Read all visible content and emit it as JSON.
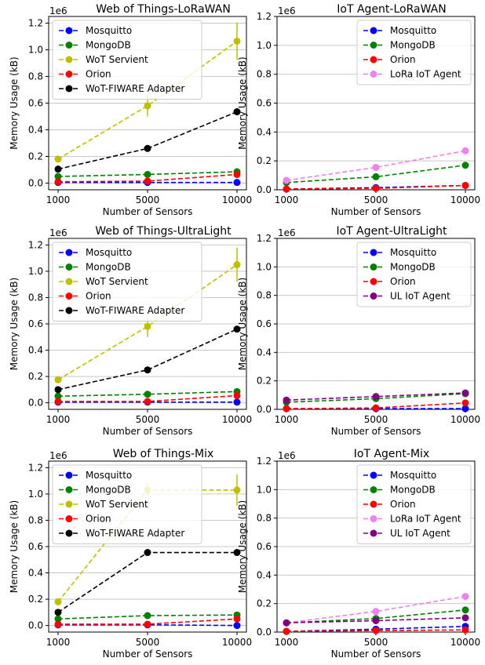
{
  "colors": {
    "Mosquitto": "#0000ff",
    "MongoDB": "#008000",
    "WoT Servient": "#bfbf00",
    "Orion": "#ff0000",
    "WoT-FIWARE Adapter": "#000000",
    "LoRa IoT Agent": "#ee82ee",
    "UL IoT Agent": "#800080"
  },
  "chart_data": [
    {
      "type": "line",
      "title": "Web of Things-LoRaWAN",
      "xlabel": "Number of Sensors",
      "ylabel": "Memory Usage (kB)",
      "scale_label": "1e6",
      "x": [
        "1000",
        "5000",
        "10000"
      ],
      "ylim": [
        -0.05,
        1.25
      ],
      "yticks": [
        "0.0",
        "0.2",
        "0.4",
        "0.6",
        "0.8",
        "1.0",
        "1.2"
      ],
      "ytick_values": [
        0,
        0.2,
        0.4,
        0.6,
        0.8,
        1.0,
        1.2
      ],
      "grid": "y",
      "legend": "top-left",
      "series": [
        {
          "name": "Mosquitto",
          "values": [
            0.005,
            0.005,
            0.005
          ]
        },
        {
          "name": "MongoDB",
          "values": [
            0.05,
            0.065,
            0.085
          ]
        },
        {
          "name": "WoT Servient",
          "values": [
            0.18,
            0.58,
            1.065
          ],
          "err": [
            0.02,
            0.08,
            0.14
          ]
        },
        {
          "name": "Orion",
          "values": [
            0.01,
            0.015,
            0.065
          ]
        },
        {
          "name": "WoT-FIWARE Adapter",
          "values": [
            0.105,
            0.26,
            0.535
          ]
        }
      ]
    },
    {
      "type": "line",
      "title": "IoT Agent-LoRaWAN",
      "xlabel": "Number of Sensors",
      "ylabel": "Memory Usage (kB)",
      "scale_label": "1e6",
      "x": [
        "1000",
        "5000",
        "10000"
      ],
      "ylim": [
        0,
        1.2
      ],
      "yticks": [
        "0.0",
        "0.2",
        "0.4",
        "0.6",
        "0.8",
        "1.0",
        "1.2"
      ],
      "ytick_values": [
        0,
        0.2,
        0.4,
        0.6,
        0.8,
        1.0,
        1.2
      ],
      "grid": "y",
      "legend": "top-right",
      "series": [
        {
          "name": "Mosquitto",
          "values": [
            0.005,
            0.015,
            0.03
          ]
        },
        {
          "name": "MongoDB",
          "values": [
            0.05,
            0.09,
            0.17
          ]
        },
        {
          "name": "Orion",
          "values": [
            0.005,
            0.01,
            0.03
          ]
        },
        {
          "name": "LoRa IoT Agent",
          "values": [
            0.065,
            0.155,
            0.27
          ]
        }
      ]
    },
    {
      "type": "line",
      "title": "Web of Things-UltraLight",
      "xlabel": "Number of Sensors",
      "ylabel": "Memory Usage (kB)",
      "scale_label": "1e6",
      "x": [
        "1000",
        "5000",
        "10000"
      ],
      "ylim": [
        -0.05,
        1.25
      ],
      "yticks": [
        "0.0",
        "0.2",
        "0.4",
        "0.6",
        "0.8",
        "1.0",
        "1.2"
      ],
      "ytick_values": [
        0,
        0.2,
        0.4,
        0.6,
        0.8,
        1.0,
        1.2
      ],
      "grid": "y",
      "legend": "top-left",
      "series": [
        {
          "name": "Mosquitto",
          "values": [
            0.005,
            0.005,
            0.005
          ]
        },
        {
          "name": "MongoDB",
          "values": [
            0.05,
            0.065,
            0.085
          ]
        },
        {
          "name": "WoT Servient",
          "values": [
            0.175,
            0.58,
            1.05
          ],
          "err": [
            0.02,
            0.08,
            0.13
          ]
        },
        {
          "name": "Orion",
          "values": [
            0.01,
            0.01,
            0.055
          ]
        },
        {
          "name": "WoT-FIWARE Adapter",
          "values": [
            0.1,
            0.25,
            0.56
          ]
        }
      ]
    },
    {
      "type": "line",
      "title": "IoT Agent-UltraLight",
      "xlabel": "Number of Sensors",
      "ylabel": "Memory Usage (kB)",
      "scale_label": "1e6",
      "x": [
        "1000",
        "5000",
        "10000"
      ],
      "ylim": [
        0,
        1.2
      ],
      "yticks": [
        "0.0",
        "0.2",
        "0.4",
        "0.6",
        "0.8",
        "1.0",
        "1.2"
      ],
      "ytick_values": [
        0,
        0.2,
        0.4,
        0.6,
        0.8,
        1.0,
        1.2
      ],
      "grid": "y",
      "legend": "top-right",
      "series": [
        {
          "name": "Mosquitto",
          "values": [
            0.005,
            0.005,
            0.005
          ]
        },
        {
          "name": "MongoDB",
          "values": [
            0.05,
            0.075,
            0.11
          ]
        },
        {
          "name": "Orion",
          "values": [
            0.005,
            0.01,
            0.045
          ]
        },
        {
          "name": "UL IoT Agent",
          "values": [
            0.065,
            0.09,
            0.115
          ]
        }
      ]
    },
    {
      "type": "line",
      "title": "Web of Things-Mix",
      "xlabel": "Number of Sensors",
      "ylabel": "Memory Usage (kB)",
      "scale_label": "1e6",
      "x": [
        "1000",
        "5000",
        "10000"
      ],
      "ylim": [
        -0.05,
        1.25
      ],
      "yticks": [
        "0.0",
        "0.2",
        "0.4",
        "0.6",
        "0.8",
        "1.0",
        "1.2"
      ],
      "ytick_values": [
        0,
        0.2,
        0.4,
        0.6,
        0.8,
        1.0,
        1.2
      ],
      "grid": "y",
      "legend": "top-left",
      "series": [
        {
          "name": "Mosquitto",
          "values": [
            0.005,
            0.005,
            0.0
          ]
        },
        {
          "name": "MongoDB",
          "values": [
            0.05,
            0.075,
            0.08
          ]
        },
        {
          "name": "WoT Servient",
          "values": [
            0.18,
            1.03,
            1.03
          ],
          "err": [
            0.02,
            0.05,
            0.12
          ]
        },
        {
          "name": "Orion",
          "values": [
            0.01,
            0.01,
            0.05
          ]
        },
        {
          "name": "WoT-FIWARE Adapter",
          "values": [
            0.1,
            0.555,
            0.555
          ]
        }
      ]
    },
    {
      "type": "line",
      "title": "IoT Agent-Mix",
      "xlabel": "Number of Sensors",
      "ylabel": "Memory Usage (kB)",
      "scale_label": "1e6",
      "x": [
        "1000",
        "5000",
        "10000"
      ],
      "ylim": [
        0,
        1.2
      ],
      "yticks": [
        "0.0",
        "0.2",
        "0.4",
        "0.6",
        "0.8",
        "1.0",
        "1.2"
      ],
      "ytick_values": [
        0,
        0.2,
        0.4,
        0.6,
        0.8,
        1.0,
        1.2
      ],
      "grid": "y",
      "legend": "top-right",
      "series": [
        {
          "name": "Mosquitto",
          "values": [
            0.005,
            0.02,
            0.04
          ]
        },
        {
          "name": "MongoDB",
          "values": [
            0.065,
            0.095,
            0.155
          ]
        },
        {
          "name": "Orion",
          "values": [
            0.005,
            0.01,
            0.015
          ]
        },
        {
          "name": "LoRa IoT Agent",
          "values": [
            0.065,
            0.145,
            0.25
          ]
        },
        {
          "name": "UL IoT Agent",
          "values": [
            0.065,
            0.08,
            0.1
          ]
        }
      ]
    }
  ]
}
